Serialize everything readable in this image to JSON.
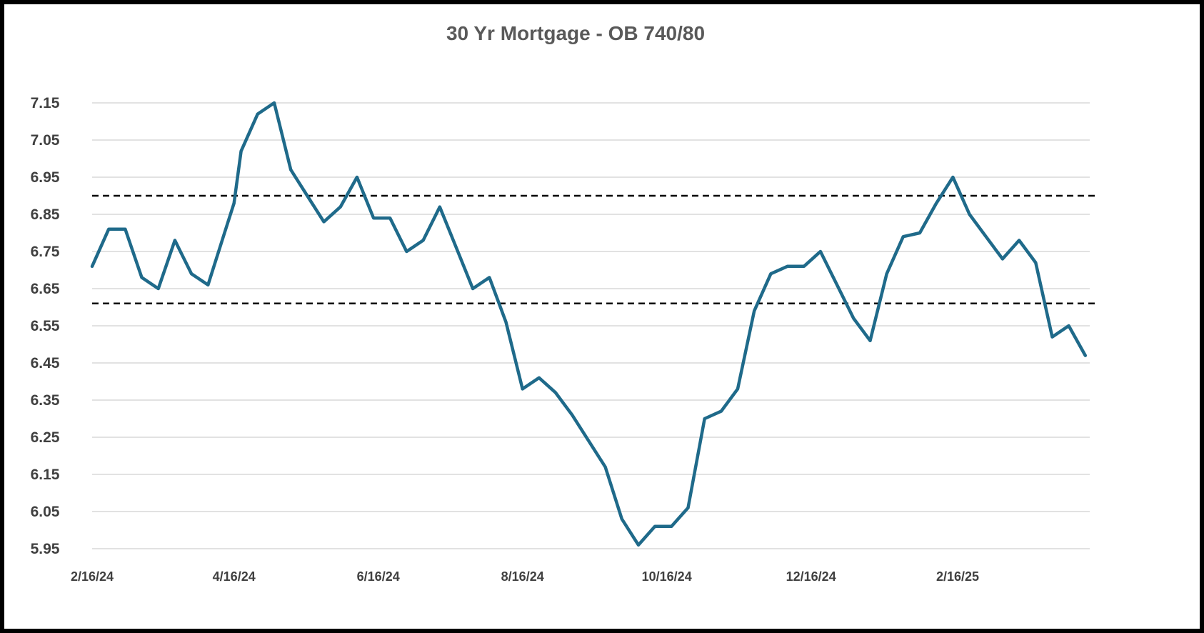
{
  "chart_data": {
    "type": "line",
    "title": "30 Yr Mortgage - OB 740/80",
    "xlabel": "",
    "ylabel": "",
    "ylim": [
      5.95,
      7.15
    ],
    "yticks": [
      "7.15",
      "7.05",
      "6.95",
      "6.85",
      "6.75",
      "6.65",
      "6.55",
      "6.45",
      "6.35",
      "6.25",
      "6.15",
      "6.05",
      "5.95"
    ],
    "xticks": [
      "2/16/24",
      "4/16/24",
      "6/16/24",
      "8/16/24",
      "10/16/24",
      "12/16/24",
      "2/16/25"
    ],
    "grid": true,
    "legend": "none",
    "colors": {
      "series": "#1f6a8a",
      "reference": "#000000",
      "grid": "#d9d9d9"
    },
    "reference_lines": [
      6.9,
      6.61
    ],
    "series": [
      {
        "x": [
          "2024-02-16",
          "2024-02-23",
          "2024-03-01",
          "2024-03-08",
          "2024-03-15",
          "2024-03-22",
          "2024-03-29",
          "2024-04-05",
          "2024-04-12",
          "2024-04-16",
          "2024-04-19",
          "2024-04-26",
          "2024-05-03",
          "2024-05-10",
          "2024-05-17",
          "2024-05-24",
          "2024-05-31",
          "2024-06-07",
          "2024-06-14",
          "2024-06-21",
          "2024-06-28",
          "2024-07-05",
          "2024-07-12",
          "2024-07-19",
          "2024-07-26",
          "2024-08-02",
          "2024-08-09",
          "2024-08-16",
          "2024-08-23",
          "2024-08-30",
          "2024-09-06",
          "2024-09-13",
          "2024-09-20",
          "2024-09-27",
          "2024-10-04",
          "2024-10-11",
          "2024-10-18",
          "2024-10-25",
          "2024-11-01",
          "2024-11-08",
          "2024-11-15",
          "2024-11-22",
          "2024-11-29",
          "2024-12-06",
          "2024-12-13",
          "2024-12-20",
          "2024-12-27",
          "2025-01-03",
          "2025-01-10",
          "2025-01-17",
          "2025-01-24",
          "2025-01-31",
          "2025-02-07",
          "2025-02-14",
          "2025-02-21",
          "2025-02-28",
          "2025-03-07",
          "2025-03-14",
          "2025-03-21",
          "2025-03-28",
          "2025-04-04",
          "2025-04-11"
        ],
        "values": [
          6.71,
          6.81,
          6.81,
          6.68,
          6.65,
          6.78,
          6.69,
          6.66,
          6.8,
          6.88,
          7.02,
          7.12,
          7.15,
          6.97,
          6.9,
          6.83,
          6.87,
          6.95,
          6.84,
          6.84,
          6.75,
          6.78,
          6.87,
          6.76,
          6.65,
          6.68,
          6.56,
          6.38,
          6.41,
          6.37,
          6.31,
          6.24,
          6.17,
          6.03,
          5.96,
          6.01,
          6.01,
          6.06,
          6.3,
          6.32,
          6.38,
          6.59,
          6.69,
          6.71,
          6.71,
          6.75,
          6.66,
          6.57,
          6.51,
          6.69,
          6.79,
          6.8,
          6.88,
          6.95,
          6.85,
          6.79,
          6.73,
          6.78,
          6.72,
          6.52,
          6.55,
          6.47
        ]
      }
    ]
  }
}
